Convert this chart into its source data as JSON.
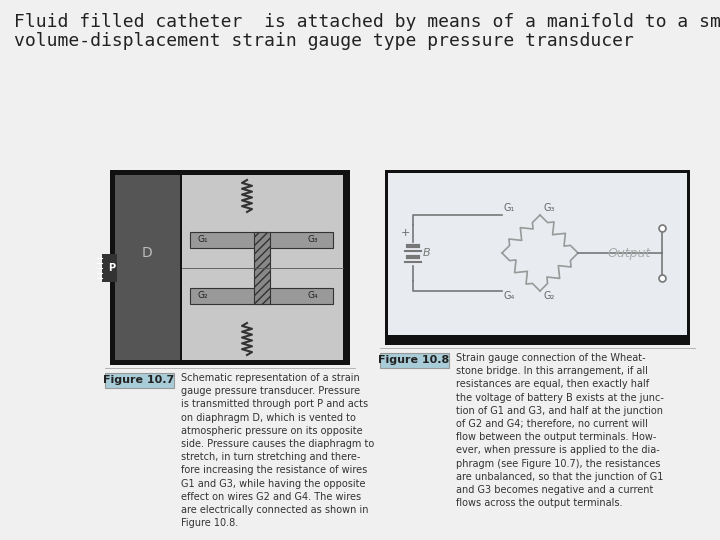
{
  "title_line1": "Fluid filled catheter  is attached by means of a manifold to a small-",
  "title_line2": "volume-displacement strain gauge type pressure transducer",
  "background_color": "#f0f0f0",
  "title_fontsize": 13,
  "title_color": "#222222",
  "fig_label_color": "#a8ccd8",
  "fig_label_text_color": "#222222",
  "fig1_label": "Figure 10.7",
  "fig1_caption": "Schematic representation of a strain\ngauge pressure transducer. Pressure\nis transmitted through port P and acts\non diaphragm D, which is vented to\natmospheric pressure on its opposite\nside. Pressure causes the diaphragm to\nstretch, in turn stretching and there-\nfore increasing the resistance of wires\nG1 and G3, while having the opposite\neffect on wires G2 and G4. The wires\nare electrically connected as shown in\nFigure 10.8.",
  "fig2_label": "Figure 10.8",
  "fig2_caption": "Strain gauge connection of the Wheat-\nstone bridge. In this arrangement, if all\nresistances are equal, then exactly half\nthe voltage of battery B exists at the junc-\ntion of G1 and G3, and half at the junction\nof G2 and G4; therefore, no current will\nflow between the output terminals. How-\never, when pressure is applied to the dia-\nphragm (see Figure 10.7), the resistances\nare unbalanced, so that the junction of G1\nand G3 becomes negative and a current\nflows across the output terminals.",
  "caption_fontsize": 7,
  "label_fontsize": 8
}
